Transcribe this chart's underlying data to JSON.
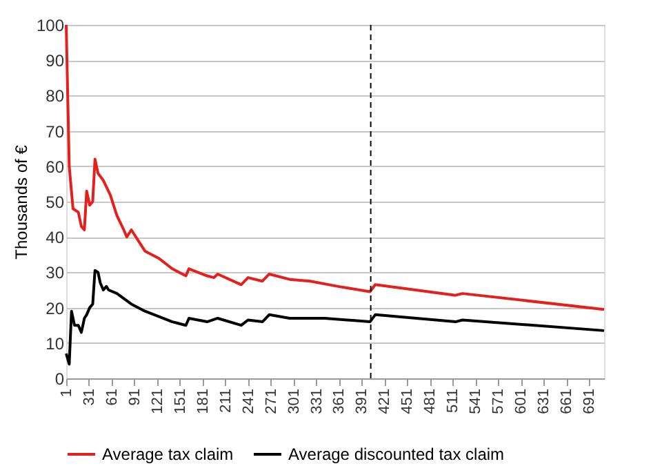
{
  "chart_data": {
    "type": "line",
    "ylabel": "Thousands of €",
    "xlim": [
      1,
      711
    ],
    "xticks": [
      1,
      31,
      61,
      91,
      121,
      151,
      181,
      211,
      241,
      271,
      301,
      331,
      361,
      391,
      421,
      451,
      481,
      511,
      541,
      571,
      601,
      631,
      661,
      691
    ],
    "ylim": [
      0,
      100
    ],
    "yticks": [
      0,
      10,
      20,
      30,
      40,
      50,
      60,
      70,
      80,
      90,
      100
    ],
    "grid": "y",
    "legend": "bottom",
    "line_style": "solid",
    "marker": "none",
    "x": [
      1,
      3,
      5,
      10,
      17,
      21,
      25,
      28,
      32,
      36,
      39,
      43,
      50,
      59,
      68,
      77,
      81,
      87,
      105,
      123,
      141,
      159,
      163,
      187,
      196,
      201,
      232,
      241,
      260,
      269,
      296,
      323,
      360,
      402,
      409,
      515,
      524,
      711
    ],
    "series": [
      {
        "name": "Average tax claim",
        "color": "#e3201b",
        "values": [
          100,
          80,
          60,
          48,
          47,
          43,
          42,
          53,
          49,
          50,
          62,
          58,
          56,
          52,
          46,
          42,
          40,
          42,
          36,
          34,
          31,
          29,
          31,
          29,
          28.5,
          29.5,
          26.5,
          28.5,
          27.5,
          29.5,
          28,
          27.5,
          26,
          24.5,
          26.5,
          23.5,
          24,
          19.5
        ]
      },
      {
        "name": "Average discounted tax claim",
        "color": "#000000",
        "x": [
          1,
          5,
          8,
          12,
          17,
          21,
          25,
          28,
          32,
          36,
          39,
          43,
          46,
          50,
          54,
          57,
          68,
          87,
          105,
          123,
          141,
          159,
          163,
          187,
          201,
          232,
          241,
          260,
          269,
          296,
          342,
          402,
          409,
          515,
          524,
          711
        ],
        "values": [
          7,
          4,
          19,
          15,
          15,
          13,
          17,
          18,
          20,
          21,
          30.5,
          30,
          27,
          25,
          26,
          25,
          24,
          21,
          19,
          17.5,
          16,
          15,
          17,
          16,
          17,
          15,
          16.5,
          16,
          18,
          17,
          17,
          16,
          18,
          16,
          16.5,
          13.5
        ]
      }
    ],
    "ref_lines": [
      {
        "axis": "x",
        "value": 403,
        "color": "#000000",
        "line_style": "dashed"
      }
    ]
  }
}
